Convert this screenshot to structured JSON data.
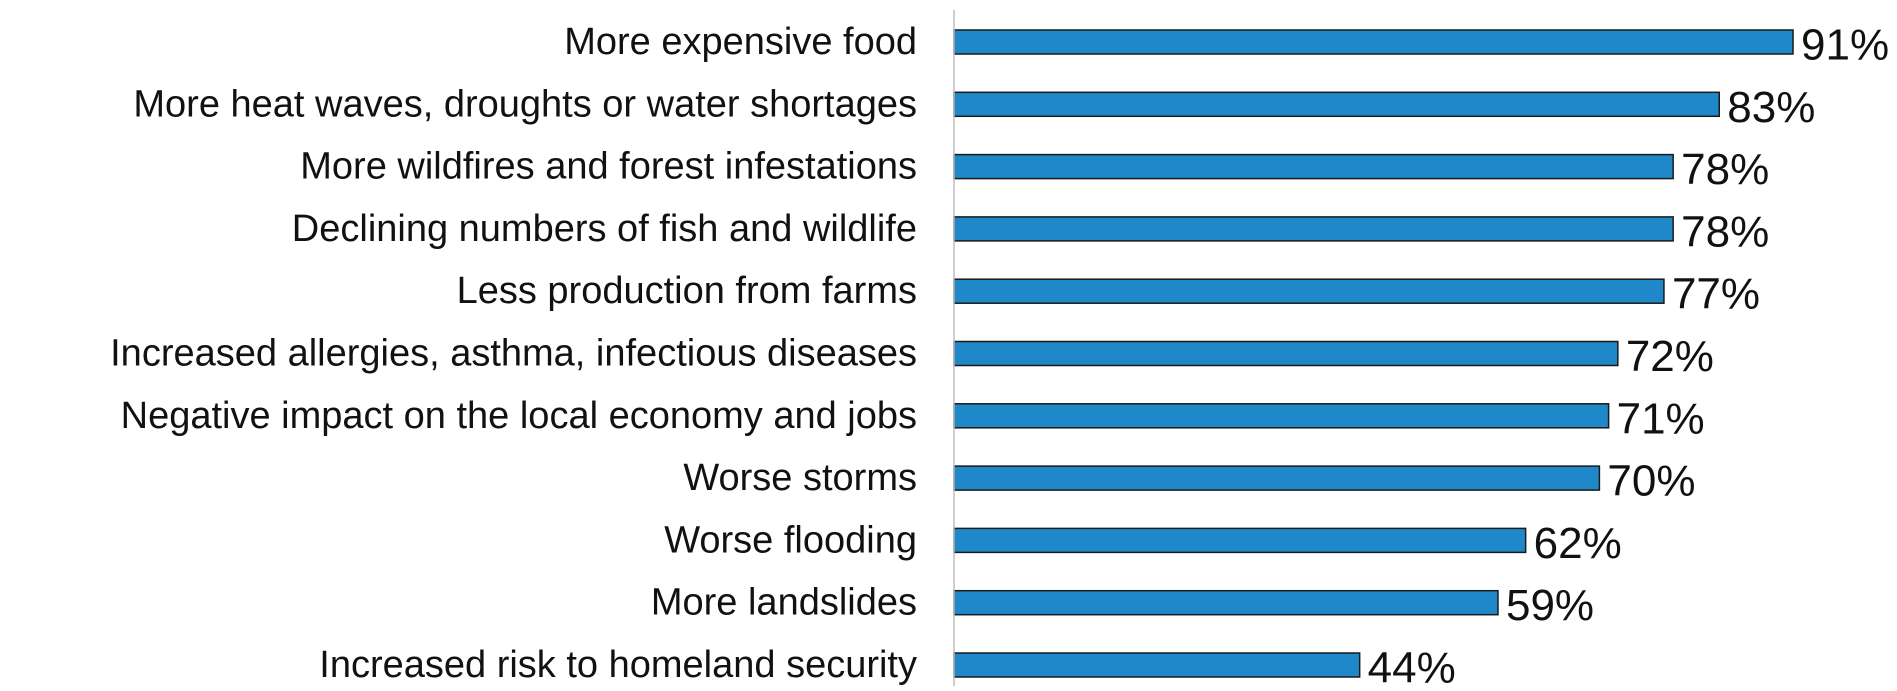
{
  "chart_data": {
    "type": "bar",
    "orientation": "horizontal",
    "title": "",
    "xlabel": "",
    "ylabel": "",
    "grid": false,
    "legend": "none",
    "bar_color": "#1f88c8",
    "bar_edge_color": "#1a1a1a",
    "axis_line_color": "#bdbdbd",
    "value_suffix": "%",
    "xlim": [
      0,
      100
    ],
    "categories": [
      "More expensive food",
      "More heat waves, droughts or water shortages",
      "More wildfires and forest infestations",
      "Declining numbers of fish and wildlife",
      "Less production from farms",
      "Increased allergies, asthma, infectious diseases",
      "Negative impact on the local economy and jobs",
      "Worse storms",
      "Worse flooding",
      "More landslides",
      "Increased risk to homeland security"
    ],
    "values": [
      91,
      83,
      78,
      78,
      77,
      72,
      71,
      70,
      62,
      59,
      44
    ],
    "value_labels": [
      "91%",
      "83%",
      "78%",
      "78%",
      "77%",
      "72%",
      "71%",
      "70%",
      "62%",
      "59%",
      "44%"
    ]
  }
}
